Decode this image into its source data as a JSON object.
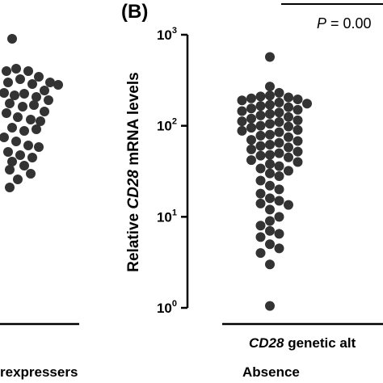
{
  "figure": {
    "panel_label": "(B)",
    "p_value_text": {
      "prefix": "P",
      "rest": " = 0.00"
    },
    "left_panel_category": "rexpressers"
  },
  "colors": {
    "dot": "#333333",
    "axis": "#000000",
    "background": "#ffffff"
  },
  "chart_data": [
    {
      "type": "scatter",
      "panel": "left (partially visible)",
      "category": "rexpressers",
      "points": []
    },
    {
      "type": "scatter",
      "panel": "(B)",
      "title": "",
      "ylabel": {
        "prefix": "Relative ",
        "gene": "CD28",
        "suffix": " mRNA levels"
      },
      "yscale": "log",
      "ylim": [
        1,
        1000
      ],
      "yticks": [
        {
          "value": 1,
          "base": "10",
          "exp": "0"
        },
        {
          "value": 10,
          "base": "10",
          "exp": "1"
        },
        {
          "value": 100,
          "base": "10",
          "exp": "2"
        },
        {
          "value": 1000,
          "base": "10",
          "exp": "3"
        }
      ],
      "xgroup_label": {
        "gene": "CD28",
        "suffix": " genetic alt"
      },
      "categories": [
        "Absence"
      ],
      "series": [
        {
          "category": "Absence",
          "values": [
            570,
            270,
            230,
            215,
            210,
            205,
            200,
            195,
            190,
            180,
            175,
            170,
            165,
            160,
            155,
            150,
            145,
            140,
            135,
            130,
            125,
            120,
            115,
            112,
            110,
            105,
            100,
            98,
            95,
            90,
            88,
            85,
            80,
            78,
            75,
            70,
            68,
            65,
            62,
            60,
            58,
            55,
            52,
            50,
            48,
            47,
            45,
            42,
            40,
            38,
            36,
            34,
            32,
            30,
            28,
            25,
            22,
            20,
            18,
            16,
            15,
            14,
            13.5,
            12,
            10,
            9,
            8,
            7,
            6.5,
            6,
            5,
            4.5,
            4,
            3,
            1.05
          ]
        }
      ]
    }
  ]
}
